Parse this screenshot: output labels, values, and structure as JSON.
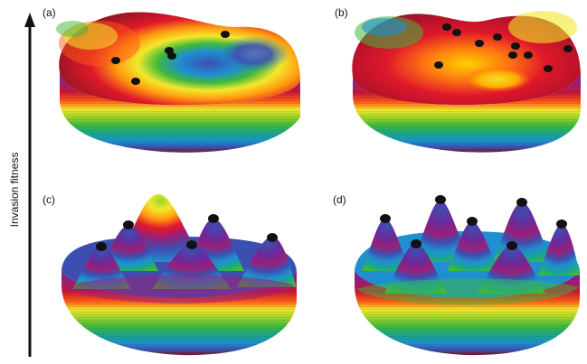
{
  "figure": {
    "axis_label": "Invasion fitness",
    "panels": [
      {
        "id": "a",
        "label": "(a)"
      },
      {
        "id": "b",
        "label": "(b)"
      },
      {
        "id": "c",
        "label": "(c)"
      },
      {
        "id": "d",
        "label": "(d)"
      }
    ],
    "colors": {
      "bands": [
        "#7a1420",
        "#b3122a",
        "#e0182a",
        "#ff5a14",
        "#ffb000",
        "#f2e82c",
        "#9bd42a",
        "#3fb83c",
        "#1aa889",
        "#1f8fd0",
        "#3c4fb0",
        "#6a2a9a",
        "#9a1f78"
      ],
      "marker": "#111111",
      "axis": "#111111"
    }
  }
}
